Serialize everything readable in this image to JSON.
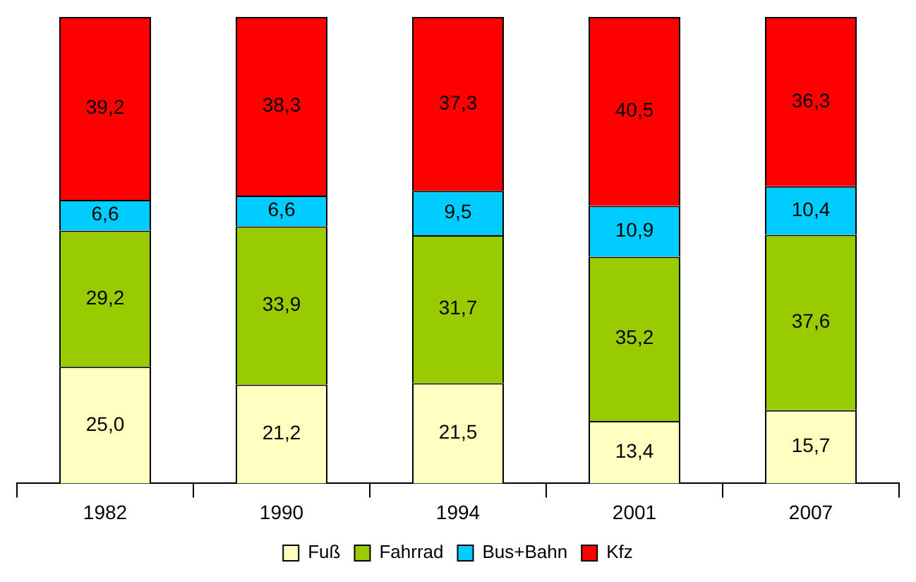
{
  "chart_data": {
    "type": "bar",
    "stacked": true,
    "legend": "bottom",
    "grid": false,
    "categories": [
      "1982",
      "1990",
      "1994",
      "2001",
      "2007"
    ],
    "series": [
      {
        "name": "Fuß",
        "color": "#ffffc0",
        "values": [
          25.0,
          21.2,
          21.5,
          13.4,
          15.7
        ],
        "value_labels": [
          "25,0",
          "21,2",
          "21,5",
          "13,4",
          "15,7"
        ]
      },
      {
        "name": "Fahrrad",
        "color": "#99cc00",
        "values": [
          29.2,
          33.9,
          31.7,
          35.2,
          37.6
        ],
        "value_labels": [
          "29,2",
          "33,9",
          "31,7",
          "35,2",
          "37,6"
        ]
      },
      {
        "name": "Bus+Bahn",
        "color": "#00ccff",
        "values": [
          6.6,
          6.6,
          9.5,
          10.9,
          10.4
        ],
        "value_labels": [
          "6,6",
          "6,6",
          "9,5",
          "10,9",
          "10,4"
        ]
      },
      {
        "name": "Kfz",
        "color": "#ff0000",
        "values": [
          39.2,
          38.3,
          37.3,
          40.5,
          36.3
        ],
        "value_labels": [
          "39,2",
          "38,3",
          "37,3",
          "40,5",
          "36,3"
        ]
      }
    ]
  }
}
